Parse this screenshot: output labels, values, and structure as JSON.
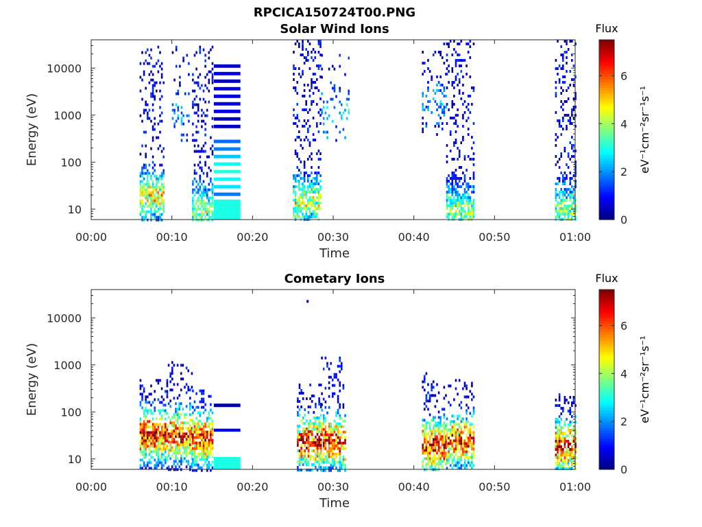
{
  "figure": {
    "title": "RPCICA150724T00.PNG"
  },
  "chart_data": [
    {
      "type": "heatmap",
      "title": "Solar Wind Ions",
      "xlabel": "Time",
      "ylabel": "Energy (eV)",
      "x_unit": "minutes",
      "xlim": [
        0,
        60
      ],
      "ylim": [
        6,
        40000
      ],
      "y_scale": "log",
      "x_ticks": [
        "00:00",
        "00:10",
        "00:20",
        "00:30",
        "00:40",
        "00:50",
        "01:00"
      ],
      "y_ticks": [
        "10",
        "100",
        "1000",
        "10000"
      ],
      "colorbar": {
        "label": "Flux",
        "units": "eV⁻¹cm⁻²sr⁻¹s⁻¹",
        "range": [
          0,
          7.5
        ],
        "ticks": [
          "0",
          "2",
          "4",
          "6"
        ],
        "colormap": "jet"
      },
      "bursts": [
        {
          "t_start": 6.0,
          "t_end": 9.0,
          "e_min": 6,
          "e_max": 30000,
          "density": 0.55,
          "high_flux": 4.5,
          "peak_energy": 20
        },
        {
          "t_start": 10.0,
          "t_end": 12.0,
          "e_min": 300,
          "e_max": 30000,
          "density": 0.2,
          "high_flux": 1.5,
          "peak_energy": 1000
        },
        {
          "t_start": 12.5,
          "t_end": 15.0,
          "e_min": 6,
          "e_max": 30000,
          "density": 0.55,
          "high_flux": 3.5,
          "peak_energy": 10
        },
        {
          "t_start": 25.0,
          "t_end": 28.5,
          "e_min": 6,
          "e_max": 40000,
          "density": 0.55,
          "high_flux": 4.0,
          "peak_energy": 15
        },
        {
          "t_start": 28.5,
          "t_end": 32.0,
          "e_min": 300,
          "e_max": 20000,
          "density": 0.15,
          "high_flux": 2.0,
          "peak_energy": 1000
        },
        {
          "t_start": 41.0,
          "t_end": 44.0,
          "e_min": 400,
          "e_max": 40000,
          "density": 0.25,
          "high_flux": 1.5,
          "peak_energy": 2000
        },
        {
          "t_start": 44.0,
          "t_end": 47.5,
          "e_min": 6,
          "e_max": 40000,
          "density": 0.55,
          "high_flux": 3.5,
          "peak_energy": 10
        },
        {
          "t_start": 57.5,
          "t_end": 60.0,
          "e_min": 6,
          "e_max": 40000,
          "density": 0.55,
          "high_flux": 3.5,
          "peak_energy": 10
        }
      ],
      "bands": [
        {
          "t_start": 15.2,
          "t_end": 18.5,
          "e_min": 6,
          "e_max": 16,
          "flux": 3.0
        },
        {
          "t_start": 15.2,
          "t_end": 18.5,
          "e_min": 20,
          "e_max": 300,
          "flux": 2.4,
          "striped": true
        },
        {
          "t_start": 15.2,
          "t_end": 18.5,
          "e_min": 600,
          "e_max": 12000,
          "flux": 0.6,
          "striped": true
        }
      ]
    },
    {
      "type": "heatmap",
      "title": "Cometary Ions",
      "xlabel": "Time",
      "ylabel": "Energy (eV)",
      "x_unit": "minutes",
      "xlim": [
        0,
        60
      ],
      "ylim": [
        6,
        40000
      ],
      "y_scale": "log",
      "x_ticks": [
        "00:00",
        "00:10",
        "00:20",
        "00:30",
        "00:40",
        "00:50",
        "01:00"
      ],
      "y_ticks": [
        "10",
        "100",
        "1000",
        "10000"
      ],
      "colorbar": {
        "label": "Flux",
        "units": "eV⁻¹cm⁻²sr⁻¹s⁻¹",
        "range": [
          0,
          7.5
        ],
        "ticks": [
          "0",
          "2",
          "4",
          "6"
        ],
        "colormap": "jet"
      },
      "bursts": [
        {
          "t_start": 6.0,
          "t_end": 9.5,
          "e_min": 6,
          "e_max": 500,
          "density": 0.6,
          "high_flux": 6.8,
          "peak_energy": 35
        },
        {
          "t_start": 9.5,
          "t_end": 12.5,
          "e_min": 6,
          "e_max": 1200,
          "density": 0.55,
          "high_flux": 6.5,
          "peak_energy": 35
        },
        {
          "t_start": 12.5,
          "t_end": 15.0,
          "e_min": 6,
          "e_max": 300,
          "density": 0.6,
          "high_flux": 6.5,
          "peak_energy": 30
        },
        {
          "t_start": 25.5,
          "t_end": 28.5,
          "e_min": 6,
          "e_max": 400,
          "density": 0.55,
          "high_flux": 6.8,
          "peak_energy": 25
        },
        {
          "t_start": 28.5,
          "t_end": 31.5,
          "e_min": 6,
          "e_max": 1500,
          "density": 0.55,
          "high_flux": 6.8,
          "peak_energy": 25
        },
        {
          "t_start": 41.0,
          "t_end": 44.0,
          "e_min": 6,
          "e_max": 700,
          "density": 0.55,
          "high_flux": 7.0,
          "peak_energy": 20
        },
        {
          "t_start": 44.0,
          "t_end": 47.5,
          "e_min": 6,
          "e_max": 500,
          "density": 0.55,
          "high_flux": 6.5,
          "peak_energy": 25
        },
        {
          "t_start": 57.5,
          "t_end": 60.0,
          "e_min": 6,
          "e_max": 250,
          "density": 0.55,
          "high_flux": 6.5,
          "peak_energy": 20
        }
      ],
      "bands": [
        {
          "t_start": 15.2,
          "t_end": 18.5,
          "e_min": 6,
          "e_max": 11,
          "flux": 3.0
        },
        {
          "t_start": 15.2,
          "t_end": 18.5,
          "e_min": 38,
          "e_max": 44,
          "flux": 0.8
        },
        {
          "t_start": 15.2,
          "t_end": 18.5,
          "e_min": 110,
          "e_max": 150,
          "flux": 0.3,
          "striped": true
        }
      ],
      "points": [
        {
          "t": 26.7,
          "e": 24000,
          "flux": 0.5
        }
      ]
    }
  ]
}
